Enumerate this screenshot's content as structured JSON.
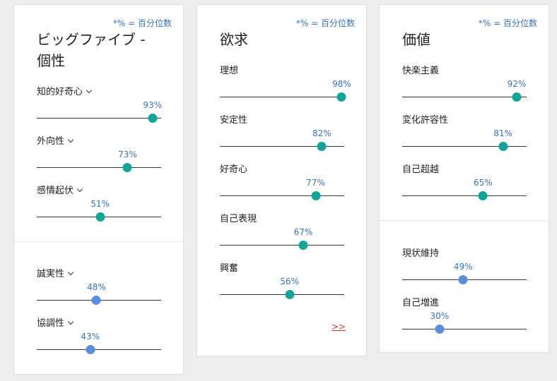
{
  "note": "*% = 百分位数",
  "big5": {
    "title_line1": "ビッグファイブ -",
    "title_line2": "個性",
    "traits": [
      {
        "label": "知的好奇心",
        "pct_label": "93%",
        "value": 0.93,
        "color": "green"
      },
      {
        "label": "外向性",
        "pct_label": "73%",
        "value": 0.73,
        "color": "green"
      },
      {
        "label": "感情起伏",
        "pct_label": "51%",
        "value": 0.51,
        "color": "green"
      },
      {
        "label": "誠実性",
        "pct_label": "48%",
        "value": 0.48,
        "color": "blue"
      },
      {
        "label": "協調性",
        "pct_label": "43%",
        "value": 0.43,
        "color": "blue"
      }
    ]
  },
  "needs": {
    "title": "欲求",
    "traits": [
      {
        "label": "理想",
        "pct_label": "98%",
        "value": 0.98,
        "color": "green"
      },
      {
        "label": "安定性",
        "pct_label": "82%",
        "value": 0.82,
        "color": "green"
      },
      {
        "label": "好奇心",
        "pct_label": "77%",
        "value": 0.77,
        "color": "green"
      },
      {
        "label": "自己表現",
        "pct_label": "67%",
        "value": 0.67,
        "color": "green"
      },
      {
        "label": "興奮",
        "pct_label": "56%",
        "value": 0.56,
        "color": "green"
      }
    ],
    "more_link": ">>"
  },
  "values": {
    "title": "価値",
    "traits": [
      {
        "label": "快楽主義",
        "pct_label": "92%",
        "value": 0.92,
        "color": "green"
      },
      {
        "label": "変化許容性",
        "pct_label": "81%",
        "value": 0.81,
        "color": "green"
      },
      {
        "label": "自己超越",
        "pct_label": "65%",
        "value": 0.65,
        "color": "green"
      },
      {
        "label": "現状維持",
        "pct_label": "49%",
        "value": 0.49,
        "color": "blue"
      },
      {
        "label": "自己増進",
        "pct_label": "30%",
        "value": 0.3,
        "color": "blue"
      }
    ]
  },
  "colors": {
    "green": "#12a597",
    "blue": "#5b8fdb",
    "link": "#c0392b"
  }
}
